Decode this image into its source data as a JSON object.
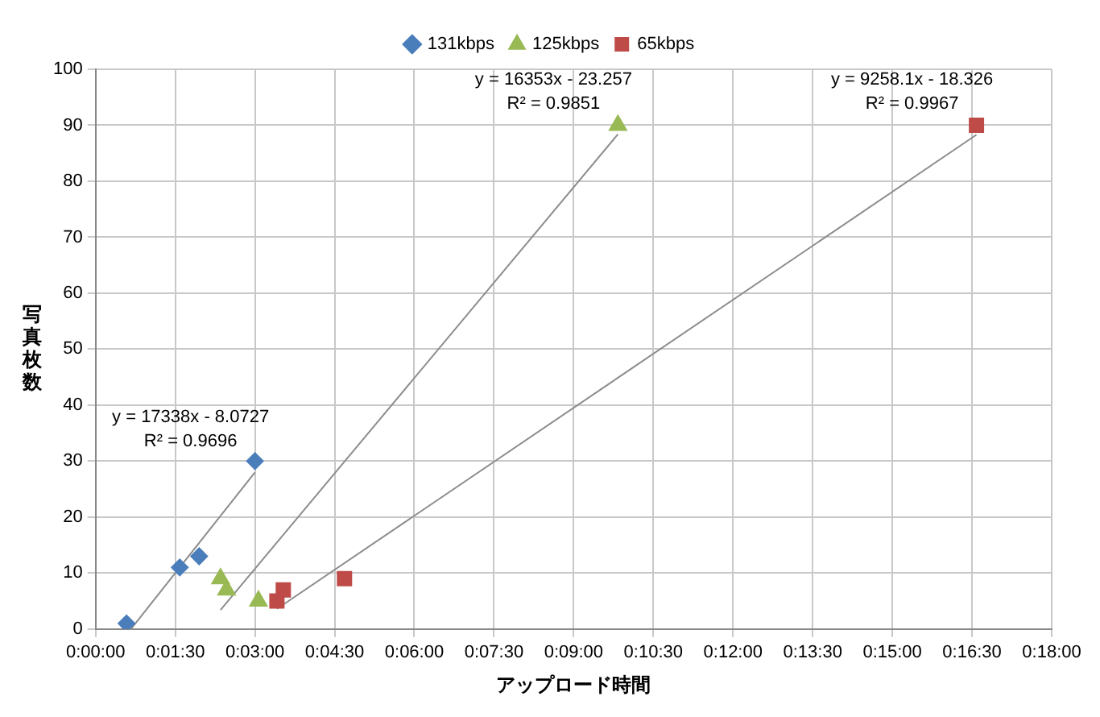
{
  "chart_data": {
    "type": "scatter",
    "xlabel": "アップロード時間",
    "ylabel": "写真枚数",
    "xlim": [
      0,
      0.3
    ],
    "xticks": [
      {
        "value": 0,
        "label": "0:00:00"
      },
      {
        "value": 0.025,
        "label": "0:01:30"
      },
      {
        "value": 0.05,
        "label": "0:03:00"
      },
      {
        "value": 0.075,
        "label": "0:04:30"
      },
      {
        "value": 0.1,
        "label": "0:06:00"
      },
      {
        "value": 0.125,
        "label": "0:07:30"
      },
      {
        "value": 0.15,
        "label": "0:09:00"
      },
      {
        "value": 0.175,
        "label": "0:10:30"
      },
      {
        "value": 0.2,
        "label": "0:12:00"
      },
      {
        "value": 0.225,
        "label": "0:13:30"
      },
      {
        "value": 0.25,
        "label": "0:15:00"
      },
      {
        "value": 0.275,
        "label": "0:16:30"
      },
      {
        "value": 0.3,
        "label": "0:18:00"
      }
    ],
    "ylim": [
      0,
      100
    ],
    "yticks": [
      0,
      10,
      20,
      30,
      40,
      50,
      60,
      70,
      80,
      90,
      100
    ],
    "grid": true,
    "legend": "top",
    "series": [
      {
        "name": "131kbps",
        "color": "#4a7ebb",
        "marker": "diamond",
        "x": [
          0.0097,
          0.0264,
          0.0325,
          0.05
        ],
        "values": [
          1,
          11,
          13,
          30
        ]
      },
      {
        "name": "125kbps",
        "color": "#98b954",
        "marker": "triangle",
        "x": [
          0.0392,
          0.0411,
          0.0511,
          0.1639
        ],
        "values": [
          9,
          7,
          5,
          90
        ]
      },
      {
        "name": "65kbps",
        "color": "#be4b48",
        "marker": "square",
        "x": [
          0.0569,
          0.0589,
          0.0781,
          0.2764
        ],
        "values": [
          5,
          7,
          9,
          90
        ]
      },
      {
        "type": "line",
        "color": "#8c8c8c",
        "marker": "none",
        "x": [
          0.0111,
          0.05
        ],
        "values": [
          0,
          28
        ]
      },
      {
        "type": "line",
        "color": "#8c8c8c",
        "marker": "none",
        "x": [
          0.0392,
          0.1639
        ],
        "values": [
          3.4,
          88.4
        ]
      },
      {
        "type": "line",
        "color": "#8c8c8c",
        "marker": "none",
        "x": [
          0.0569,
          0.2764
        ],
        "values": [
          3.6,
          88.3
        ]
      }
    ],
    "annotations": [
      "y = 17338x - 8.0727",
      "R² = 0.9696",
      "y = 16353x - 23.257",
      "R² = 0.9851",
      "y = 9258.1x - 18.326",
      "R² = 0.9967"
    ]
  }
}
